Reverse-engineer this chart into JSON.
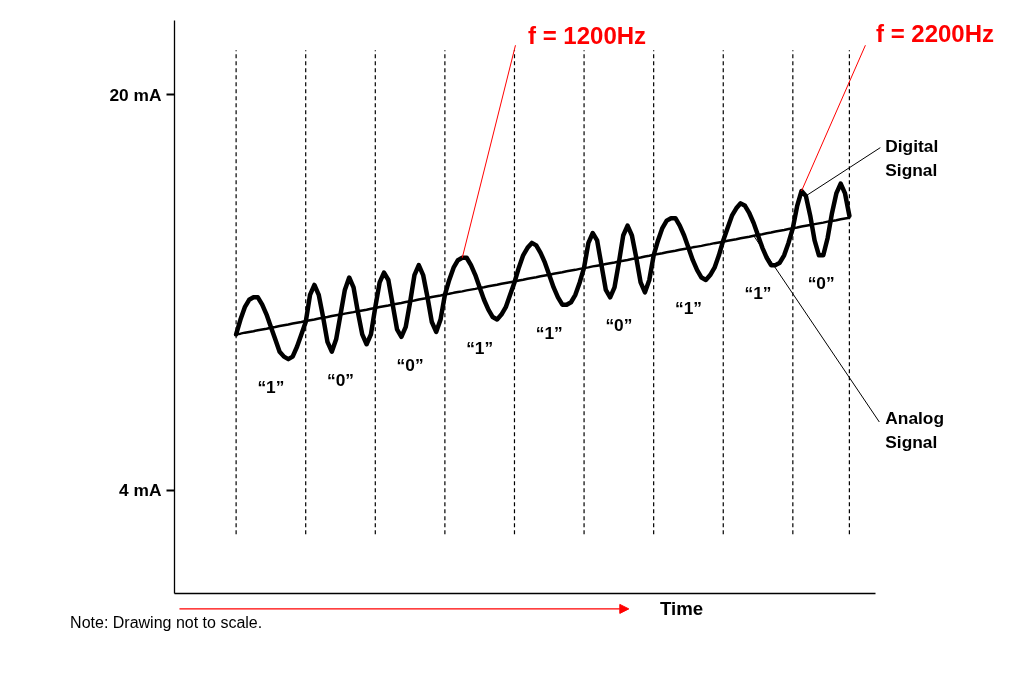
{
  "chart_data": {
    "type": "line",
    "xlabel": "Time",
    "ylim": [
      -0.2,
      23
    ],
    "yticks": [
      {
        "value": 4,
        "label": "4 mA"
      },
      {
        "value": 20,
        "label": "20 mA"
      }
    ],
    "tick_labels": "y",
    "grid": false,
    "marker": "none",
    "line_style": "solid",
    "categories": [
      null,
      null,
      null,
      null,
      null,
      null,
      null,
      null,
      null,
      null,
      null,
      null,
      null,
      null,
      null,
      null,
      null,
      null,
      null,
      null,
      null,
      null,
      null,
      null,
      null,
      null,
      null,
      null,
      null,
      null,
      null,
      null,
      null,
      null,
      null,
      null,
      null,
      null,
      null,
      null,
      null,
      null,
      null,
      null,
      null,
      null,
      null,
      null,
      null,
      null,
      null,
      null,
      null,
      null,
      null,
      null,
      null,
      null,
      null,
      null,
      null,
      null,
      null,
      null,
      null,
      null,
      null,
      null,
      null,
      null,
      null,
      null,
      null,
      null,
      null,
      null,
      null,
      null,
      null,
      null,
      null,
      null,
      null,
      null,
      null,
      null,
      null,
      null,
      null,
      null,
      null,
      null,
      null,
      null,
      null,
      null,
      null,
      null,
      null,
      null,
      null,
      null,
      null,
      null,
      null,
      null,
      null,
      null,
      null,
      null,
      null,
      null,
      null,
      null,
      null,
      null,
      null,
      null,
      null,
      null,
      null,
      null,
      null,
      null,
      null,
      null,
      null,
      null,
      null,
      null,
      null,
      null,
      null,
      null,
      null,
      null,
      null,
      null,
      null,
      null,
      null,
      null
    ],
    "series": [
      {
        "name": "Digital Signal",
        "color": "#000000",
        "values": [
          10.3,
          10.9,
          11.4,
          11.7,
          11.8,
          11.8,
          11.5,
          11.1,
          10.6,
          10.1,
          9.6,
          9.4,
          9.3,
          9.4,
          9.8,
          10.3,
          10.8,
          11.9,
          12.3,
          11.9,
          11.0,
          10.0,
          9.6,
          10.1,
          11.1,
          12.1,
          12.6,
          12.2,
          11.2,
          10.3,
          9.9,
          10.3,
          11.4,
          12.4,
          12.8,
          12.5,
          11.5,
          10.5,
          10.2,
          10.6,
          11.6,
          12.7,
          13.1,
          12.7,
          11.8,
          10.8,
          10.4,
          10.9,
          11.9,
          12.5,
          13.0,
          13.3,
          13.4,
          13.4,
          13.1,
          12.7,
          12.2,
          11.7,
          11.3,
          11.0,
          10.9,
          11.1,
          11.4,
          11.9,
          12.4,
          13.0,
          13.5,
          13.8,
          14.0,
          13.9,
          13.6,
          13.2,
          12.7,
          12.2,
          11.8,
          11.5,
          11.5,
          11.6,
          11.9,
          12.4,
          13.0,
          14.0,
          14.4,
          14.1,
          13.1,
          12.1,
          11.8,
          12.2,
          13.2,
          14.3,
          14.7,
          14.3,
          13.4,
          12.4,
          12.0,
          12.5,
          13.5,
          14.1,
          14.6,
          14.9,
          15.0,
          15.0,
          14.7,
          14.3,
          13.8,
          13.3,
          12.9,
          12.6,
          12.5,
          12.7,
          13.0,
          13.5,
          14.1,
          14.6,
          15.1,
          15.4,
          15.6,
          15.5,
          15.2,
          14.8,
          14.3,
          13.8,
          13.4,
          13.1,
          13.1,
          13.2,
          13.5,
          14.0,
          14.6,
          15.5,
          16.1,
          15.9,
          15.1,
          14.1,
          13.5,
          13.5,
          14.2,
          15.2,
          16.0,
          16.4,
          16.0,
          15.1
        ]
      },
      {
        "name": "Analog Signal",
        "color": "#000000",
        "values": [
          10.3,
          10.33,
          10.37,
          10.4,
          10.43,
          10.47,
          10.5,
          10.53,
          10.57,
          10.6,
          10.64,
          10.67,
          10.7,
          10.74,
          10.77,
          10.8,
          10.84,
          10.87,
          10.9,
          10.94,
          10.97,
          11.0,
          11.04,
          11.07,
          11.1,
          11.14,
          11.17,
          11.2,
          11.24,
          11.27,
          11.3,
          11.34,
          11.37,
          11.41,
          11.44,
          11.47,
          11.51,
          11.54,
          11.57,
          11.61,
          11.64,
          11.67,
          11.71,
          11.74,
          11.77,
          11.81,
          11.84,
          11.87,
          11.91,
          11.94,
          11.98,
          12.01,
          12.04,
          12.08,
          12.11,
          12.14,
          12.18,
          12.21,
          12.25,
          12.28,
          12.31,
          12.35,
          12.38,
          12.41,
          12.44,
          12.48,
          12.51,
          12.55,
          12.58,
          12.61,
          12.65,
          12.68,
          12.71,
          12.75,
          12.78,
          12.81,
          12.85,
          12.88,
          12.91,
          12.95,
          12.98,
          13.01,
          13.05,
          13.08,
          13.11,
          13.15,
          13.18,
          13.21,
          13.25,
          13.28,
          13.31,
          13.35,
          13.38,
          13.41,
          13.45,
          13.48,
          13.52,
          13.55,
          13.58,
          13.62,
          13.65,
          13.68,
          13.72,
          13.75,
          13.78,
          13.82,
          13.85,
          13.88,
          13.92,
          13.95,
          13.99,
          14.02,
          14.05,
          14.09,
          14.12,
          14.15,
          14.19,
          14.22,
          14.25,
          14.29,
          14.32,
          14.35,
          14.39,
          14.42,
          14.46,
          14.49,
          14.52,
          14.56,
          14.59,
          14.62,
          14.66,
          14.69,
          14.72,
          14.76,
          14.79,
          14.82,
          14.86,
          14.89,
          14.92,
          14.96,
          14.99,
          15.02
        ]
      }
    ],
    "annotations": [
      "“1”",
      "“0”",
      "“0”",
      "“1”",
      "“1”",
      "“0”",
      "“1”",
      "“1”",
      "“0”",
      "f = 1200Hz",
      "f = 2200Hz",
      "Note: Drawing not to scale."
    ]
  }
}
